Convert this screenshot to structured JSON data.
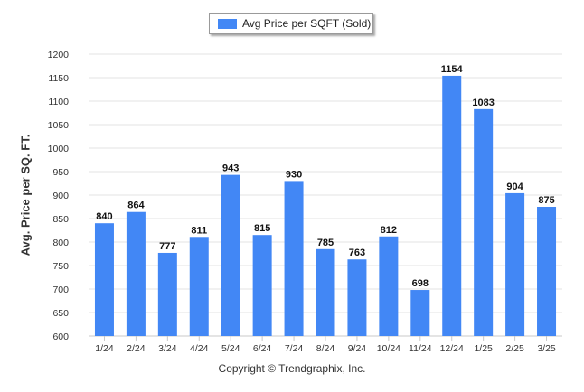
{
  "chart_data": {
    "type": "bar",
    "categories": [
      "1/24",
      "2/24",
      "3/24",
      "4/24",
      "5/24",
      "6/24",
      "7/24",
      "8/24",
      "9/24",
      "10/24",
      "11/24",
      "12/24",
      "1/25",
      "2/25",
      "3/25"
    ],
    "series": [
      {
        "name": "Avg Price per SQFT (Sold)",
        "values": [
          840,
          864,
          777,
          811,
          943,
          815,
          930,
          785,
          763,
          812,
          698,
          1154,
          1083,
          904,
          875
        ]
      }
    ],
    "ylabel": "Avg. Price per SQ. FT.",
    "xlabel": "",
    "ylim": [
      600,
      1200
    ],
    "yticks": [
      600,
      650,
      700,
      750,
      800,
      850,
      900,
      950,
      1000,
      1050,
      1100,
      1150,
      1200
    ],
    "grid": true,
    "legend_position": "top-center",
    "bar_color": "#4287f5",
    "data_labels": true
  },
  "footer": {
    "copyright": "Copyright © Trendgraphix, Inc."
  }
}
